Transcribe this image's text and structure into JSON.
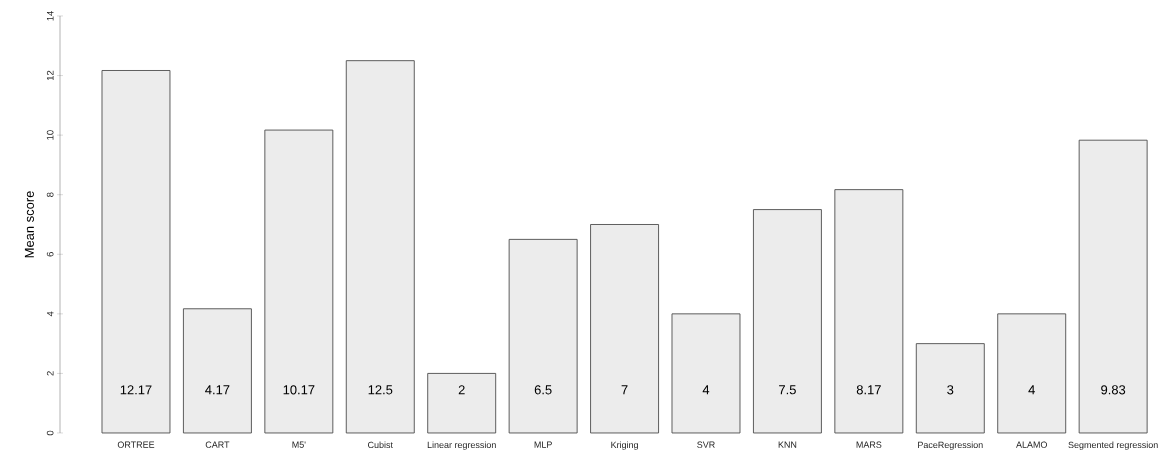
{
  "chart_data": {
    "type": "bar",
    "ylabel": "Mean score",
    "categories": [
      "ORTREE",
      "CART",
      "M5'",
      "Cubist",
      "Linear regression",
      "MLP",
      "Kriging",
      "SVR",
      "KNN",
      "MARS",
      "PaceRegression",
      "ALAMO",
      "Segmented regression"
    ],
    "values": [
      12.17,
      4.17,
      10.17,
      12.5,
      2,
      6.5,
      7,
      4,
      7.5,
      8.17,
      3,
      4,
      9.83
    ],
    "value_labels": [
      "12.17",
      "4.17",
      "10.17",
      "12.5",
      "2",
      "6.5",
      "7",
      "4",
      "7.5",
      "8.17",
      "3",
      "4",
      "9.83"
    ],
    "color": "#ececec",
    "ylim": [
      0,
      14
    ],
    "yticks": [
      0,
      2,
      4,
      6,
      8,
      10,
      12,
      14
    ]
  }
}
